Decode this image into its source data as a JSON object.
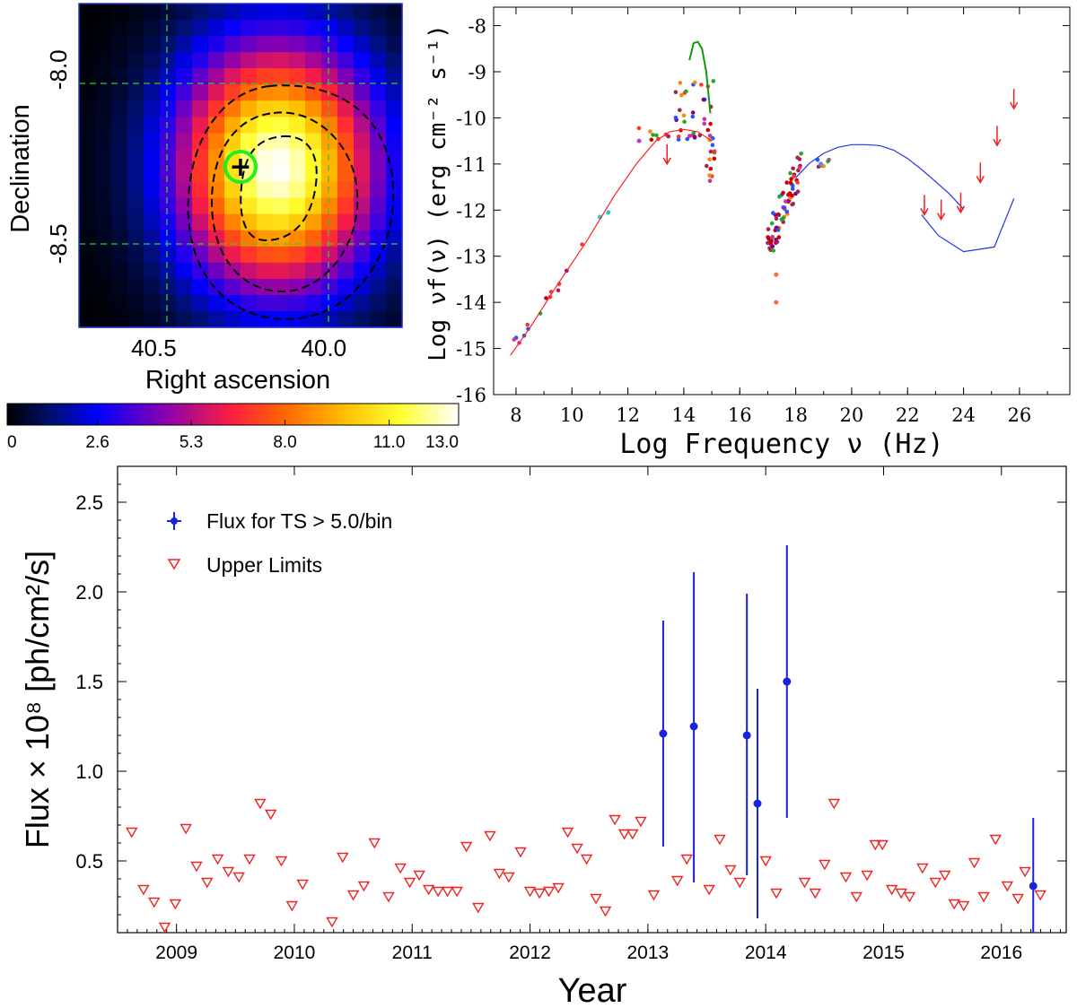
{
  "figure": {
    "panels": [
      "ts_map",
      "sed",
      "light_curve"
    ]
  },
  "chart_data": [
    {
      "id": "ts_map",
      "type": "heatmap",
      "title": "",
      "xlabel": "Right ascension",
      "ylabel": "Declination",
      "xticks": [
        "40.5",
        "40.0"
      ],
      "xtick_values": [
        40.5,
        40.0
      ],
      "yticks": [
        "-8.0",
        "-8.5"
      ],
      "ytick_values": [
        -8.0,
        -8.5
      ],
      "xlim": [
        40.72,
        39.77
      ],
      "ylim": [
        -8.74,
        -7.81
      ],
      "peak": {
        "ra": 40.14,
        "dec": -8.28,
        "ts": 13.0
      },
      "source_marker": {
        "ra": 40.28,
        "dec": -8.28,
        "symbol": "+"
      },
      "dashed_lines": {
        "ra": [
          40.5,
          40.0
        ],
        "dec": [
          -7.95,
          -8.45
        ]
      },
      "contours": 3,
      "colorbar": {
        "min": 0,
        "max": 13.0,
        "ticks": [
          "0",
          "2.6",
          "5.3",
          "8.0",
          "11.0",
          "13.0"
        ],
        "tick_values": [
          0,
          2.6,
          5.3,
          8.0,
          11.0,
          13.0
        ]
      }
    },
    {
      "id": "sed",
      "type": "scatter",
      "title": "",
      "xlabel": "Log Frequency ν (Hz)",
      "ylabel": "Log νf(ν) (erg cm⁻² s⁻¹)",
      "xlim": [
        7.2,
        27.8
      ],
      "ylim": [
        -16,
        -7.6
      ],
      "xticks": [
        "8",
        "10",
        "12",
        "14",
        "16",
        "18",
        "20",
        "22",
        "24",
        "26"
      ],
      "yticks": [
        "-8",
        "-9",
        "-10",
        "-11",
        "-12",
        "-13",
        "-14",
        "-15",
        "-16"
      ],
      "curves": [
        {
          "name": "synchrotron",
          "color": "#ff2222",
          "x": [
            7.8,
            8.5,
            9.5,
            10.5,
            11.5,
            12.3,
            13.0,
            13.5,
            14.0,
            14.5,
            15.0
          ],
          "y": [
            -15.15,
            -14.55,
            -13.6,
            -12.7,
            -11.7,
            -11.0,
            -10.5,
            -10.3,
            -10.25,
            -10.3,
            -10.5
          ]
        },
        {
          "name": "inverse compton",
          "color": "#2233ee",
          "x": [
            18.0,
            18.5,
            19.0,
            19.5,
            20.0,
            20.5,
            21.0,
            21.5,
            22.0,
            22.5,
            23.0,
            23.5,
            24.0
          ],
          "y": [
            -11.3,
            -10.98,
            -10.77,
            -10.64,
            -10.58,
            -10.58,
            -10.6,
            -10.7,
            -10.88,
            -11.12,
            -11.38,
            -11.65,
            -11.98
          ]
        },
        {
          "name": "disk",
          "color": "#119911",
          "x": [
            14.2,
            14.35,
            14.5,
            14.65,
            14.8,
            14.95
          ],
          "y": [
            -8.75,
            -8.38,
            -8.35,
            -8.5,
            -9.0,
            -9.9
          ]
        },
        {
          "name": "sensitivity",
          "color": "#2233ee",
          "x": [
            22.5,
            23.1,
            24.0,
            25.1,
            25.8
          ],
          "y": [
            -12.1,
            -12.55,
            -12.9,
            -12.8,
            -11.75
          ]
        }
      ],
      "upper_limits": [
        {
          "x": 13.4,
          "y": -11.0
        },
        {
          "x": 22.6,
          "y": -12.1
        },
        {
          "x": 23.2,
          "y": -12.2
        },
        {
          "x": 23.9,
          "y": -12.05
        },
        {
          "x": 24.6,
          "y": -11.4
        },
        {
          "x": 25.2,
          "y": -10.6
        },
        {
          "x": 25.8,
          "y": -9.8
        }
      ]
    },
    {
      "id": "light_curve",
      "type": "scatter",
      "title": "",
      "xlabel": "Year",
      "ylabel": "Flux × 10⁸ [ph/cm²/s]",
      "xlim": [
        2008.5,
        2016.55
      ],
      "ylim": [
        0.1,
        2.7
      ],
      "xticks": [
        "2009",
        "2010",
        "2011",
        "2012",
        "2013",
        "2014",
        "2015",
        "2016"
      ],
      "yticks": [
        "0.5",
        "1.0",
        "1.5",
        "2.0",
        "2.5"
      ],
      "legend": {
        "placement": "top-left",
        "entries": [
          {
            "label": "Flux for TS > 5.0/bin",
            "marker": "point-errorbar",
            "color": "#1a22dd"
          },
          {
            "label": "Upper Limits",
            "marker": "triangle-down",
            "color": "#ee2222"
          }
        ]
      },
      "series": [
        {
          "name": "Flux for TS > 5.0/bin",
          "color": "#1a22dd",
          "x": [
            2013.13,
            2013.39,
            2013.84,
            2013.93,
            2014.18,
            2016.27
          ],
          "y": [
            1.21,
            1.25,
            1.2,
            0.82,
            1.5,
            0.36
          ],
          "err_low": [
            0.58,
            0.38,
            0.42,
            0.18,
            0.74,
            0.1
          ],
          "err_high": [
            1.84,
            2.11,
            1.99,
            1.46,
            2.26,
            0.74
          ]
        },
        {
          "name": "Upper Limits",
          "color": "#ee2222",
          "x": [
            2008.62,
            2008.72,
            2008.81,
            2008.9,
            2008.99,
            2009.08,
            2009.17,
            2009.26,
            2009.35,
            2009.44,
            2009.53,
            2009.62,
            2009.71,
            2009.8,
            2009.89,
            2009.98,
            2010.07,
            2010.32,
            2010.41,
            2010.5,
            2010.59,
            2010.68,
            2010.8,
            2010.9,
            2010.98,
            2011.06,
            2011.14,
            2011.22,
            2011.3,
            2011.38,
            2011.46,
            2011.56,
            2011.66,
            2011.74,
            2011.82,
            2011.92,
            2012.0,
            2012.08,
            2012.16,
            2012.24,
            2012.32,
            2012.4,
            2012.48,
            2012.56,
            2012.64,
            2012.72,
            2012.8,
            2012.87,
            2012.94,
            2013.05,
            2013.25,
            2013.33,
            2013.52,
            2013.61,
            2013.7,
            2013.78,
            2014.0,
            2014.09,
            2014.33,
            2014.42,
            2014.5,
            2014.58,
            2014.68,
            2014.77,
            2014.86,
            2014.93,
            2014.99,
            2015.07,
            2015.15,
            2015.22,
            2015.33,
            2015.44,
            2015.52,
            2015.6,
            2015.68,
            2015.77,
            2015.85,
            2015.95,
            2016.05,
            2016.14,
            2016.2,
            2016.33
          ],
          "y": [
            0.66,
            0.34,
            0.27,
            0.13,
            0.26,
            0.68,
            0.47,
            0.38,
            0.51,
            0.44,
            0.41,
            0.51,
            0.82,
            0.76,
            0.5,
            0.25,
            0.37,
            0.16,
            0.52,
            0.31,
            0.36,
            0.6,
            0.3,
            0.46,
            0.38,
            0.42,
            0.34,
            0.33,
            0.33,
            0.33,
            0.58,
            0.24,
            0.64,
            0.43,
            0.41,
            0.55,
            0.33,
            0.32,
            0.33,
            0.35,
            0.66,
            0.57,
            0.51,
            0.29,
            0.22,
            0.73,
            0.65,
            0.65,
            0.72,
            0.31,
            0.39,
            0.51,
            0.34,
            0.62,
            0.45,
            0.38,
            0.5,
            0.32,
            0.38,
            0.32,
            0.48,
            0.82,
            0.41,
            0.3,
            0.42,
            0.59,
            0.59,
            0.34,
            0.32,
            0.3,
            0.46,
            0.38,
            0.42,
            0.26,
            0.25,
            0.49,
            0.3,
            0.62,
            0.36,
            0.29,
            0.44,
            0.31
          ]
        }
      ]
    }
  ]
}
